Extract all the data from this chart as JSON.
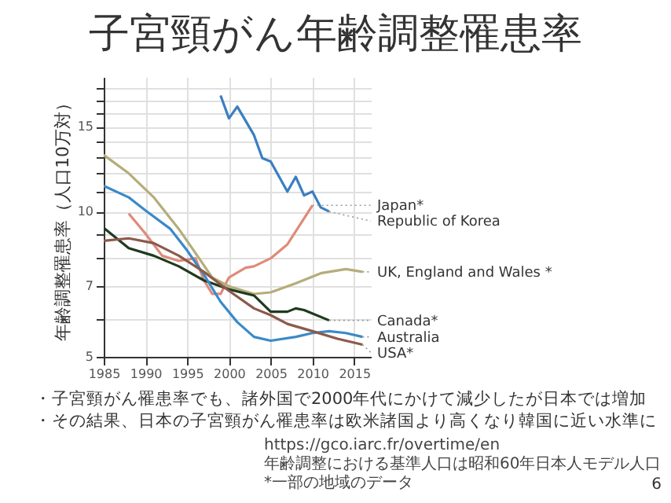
{
  "chart_data": {
    "type": "line",
    "title": "子宮頸がん年齢調整罹患率",
    "ylabel": "年齢調整罹患率（人口10万対）",
    "xlim": [
      1985,
      2017
    ],
    "xticks": [
      1985,
      1990,
      1995,
      2000,
      2005,
      2010,
      2015
    ],
    "ylim": [
      5,
      19
    ],
    "yticks": [
      5,
      {
        "value": 6,
        "label": null
      },
      7,
      {
        "value": 8,
        "label": null
      },
      {
        "value": 9,
        "label": null
      },
      10,
      {
        "value": 11,
        "label": null
      },
      {
        "value": 12,
        "label": null
      },
      {
        "value": 13,
        "label": null
      },
      {
        "value": 14,
        "label": null
      },
      15,
      {
        "value": 16,
        "label": null
      },
      {
        "value": 17,
        "label": null
      },
      {
        "value": 18,
        "label": null
      }
    ],
    "log": "y",
    "grid": true,
    "legend": false,
    "series": [
      {
        "name": "Japan*",
        "color": "#e08a7a",
        "x": [
          1988,
          1990,
          1992,
          1994,
          1996,
          1997,
          1998,
          1999,
          2000,
          2002,
          2003,
          2005,
          2007,
          2008,
          2010
        ],
        "values": [
          9.9,
          9.0,
          8.1,
          7.9,
          8.0,
          7.2,
          6.75,
          6.75,
          7.3,
          7.65,
          7.7,
          8.0,
          8.55,
          9.1,
          10.3
        ]
      },
      {
        "name": "Republic of Korea",
        "color": "#3a7fc1",
        "x": [
          1999,
          2000,
          2001,
          2003,
          2004,
          2005,
          2007,
          2008,
          2009,
          2010,
          2011,
          2012
        ],
        "values": [
          17.4,
          15.6,
          16.5,
          14.4,
          12.9,
          12.7,
          11.0,
          11.8,
          10.8,
          11.0,
          10.2,
          10.0
        ]
      },
      {
        "name": "UK, England and Wales *",
        "color": "#b5ad7a",
        "x": [
          1985,
          1988,
          1991,
          1994,
          1996,
          1998,
          2000,
          2003,
          2005,
          2008,
          2011,
          2014,
          2016
        ],
        "values": [
          13.1,
          12.0,
          10.7,
          9.2,
          8.2,
          7.3,
          7.0,
          6.75,
          6.8,
          7.1,
          7.45,
          7.6,
          7.5
        ]
      },
      {
        "name": "Canada*",
        "color": "#1f3a1f",
        "x": [
          1985,
          1988,
          1991,
          1994,
          1997,
          2000,
          2003,
          2005,
          2007,
          2008,
          2009,
          2012
        ],
        "values": [
          9.25,
          8.4,
          8.1,
          7.7,
          7.2,
          6.9,
          6.7,
          6.2,
          6.2,
          6.3,
          6.25,
          5.95
        ]
      },
      {
        "name": "Australia",
        "color": "#3a8ac8",
        "x": [
          1985,
          1988,
          1990,
          1993,
          1995,
          1997,
          1999,
          2001,
          2003,
          2005,
          2008,
          2010,
          2012,
          2014,
          2016
        ],
        "values": [
          11.3,
          10.7,
          10.05,
          9.2,
          8.3,
          7.4,
          6.5,
          5.9,
          5.5,
          5.4,
          5.5,
          5.6,
          5.65,
          5.6,
          5.5
        ]
      },
      {
        "name": "USA*",
        "color": "#8b5a4a",
        "x": [
          1985,
          1988,
          1991,
          1994,
          1997,
          2000,
          2003,
          2005,
          2007,
          2010,
          2013,
          2016
        ],
        "values": [
          8.7,
          8.8,
          8.6,
          8.1,
          7.5,
          6.85,
          6.3,
          6.1,
          5.85,
          5.65,
          5.45,
          5.3
        ]
      }
    ],
    "annotations": [
      "・子宮頸がん罹患率でも、諸外国で2000年代にかけて減少したが日本では増加",
      "・その結果、日本の子宮頸がん罹患率は欧米諸国より高くなり韓国に近い水準に",
      "https://gco.iarc.fr/overtime/en",
      "年齢調整における基準人口は昭和60年日本人モデル人口",
      "*一部の地域のデータ",
      "6"
    ]
  }
}
